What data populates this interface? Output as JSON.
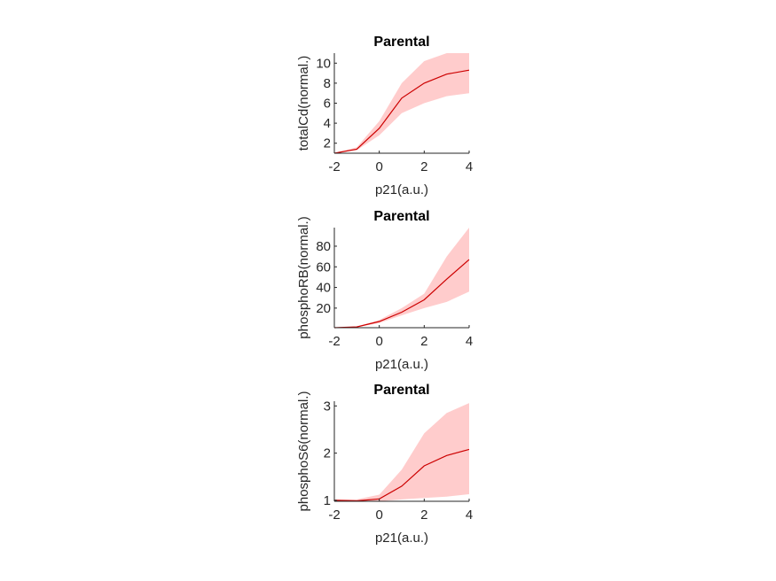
{
  "chart_data": [
    {
      "type": "line",
      "title": "Parental",
      "xlabel": "p21(a.u.)",
      "ylabel": "totalCd(normal.)",
      "xlim": [
        -2,
        4
      ],
      "ylim": [
        1,
        11
      ],
      "xticks": [
        -2,
        0,
        2,
        4
      ],
      "yticks": [
        2,
        4,
        6,
        8,
        10
      ],
      "colors": {
        "line": "#cc0000",
        "band": "#ff0000"
      },
      "series": [
        {
          "x": [
            -2,
            -1,
            0,
            1,
            2,
            3,
            4
          ],
          "mean": [
            1.0,
            1.4,
            3.5,
            6.5,
            8.0,
            8.9,
            9.3
          ],
          "lower": [
            1.0,
            1.3,
            2.8,
            5.0,
            6.0,
            6.7,
            7.0
          ],
          "upper": [
            1.0,
            1.6,
            4.2,
            8.0,
            10.2,
            11.3,
            11.6
          ]
        }
      ]
    },
    {
      "type": "line",
      "title": "Parental",
      "xlabel": "p21(a.u.)",
      "ylabel": "phosphoRB(normal.)",
      "xlim": [
        -2,
        4
      ],
      "ylim": [
        1,
        98
      ],
      "xticks": [
        -2,
        0,
        2,
        4
      ],
      "yticks": [
        20,
        40,
        60,
        80
      ],
      "colors": {
        "line": "#cc0000",
        "band": "#ff0000"
      },
      "series": [
        {
          "x": [
            -2,
            -1,
            0,
            1,
            2,
            3,
            4
          ],
          "mean": [
            1,
            1.8,
            7,
            16,
            28,
            48,
            67
          ],
          "lower": [
            1,
            1.5,
            5.5,
            13,
            20,
            26,
            36
          ],
          "upper": [
            1,
            2.2,
            8.5,
            20,
            34,
            70,
            99
          ]
        }
      ]
    },
    {
      "type": "line",
      "title": "Parental",
      "xlabel": "p21(a.u.)",
      "ylabel": "phosphoS6(normal.)",
      "xlim": [
        -2,
        4
      ],
      "ylim": [
        0.98,
        3.1
      ],
      "xticks": [
        -2,
        0,
        2,
        4
      ],
      "yticks": [
        1,
        2,
        3
      ],
      "colors": {
        "line": "#cc0000",
        "band": "#ff0000"
      },
      "series": [
        {
          "x": [
            -2,
            -1,
            0,
            1,
            2,
            3,
            4
          ],
          "mean": [
            1.0,
            0.99,
            1.03,
            1.3,
            1.73,
            1.95,
            2.08
          ],
          "lower": [
            0.99,
            0.98,
            0.98,
            1.02,
            1.05,
            1.08,
            1.13
          ],
          "upper": [
            1.02,
            1.02,
            1.12,
            1.65,
            2.42,
            2.85,
            3.06
          ]
        }
      ]
    }
  ]
}
